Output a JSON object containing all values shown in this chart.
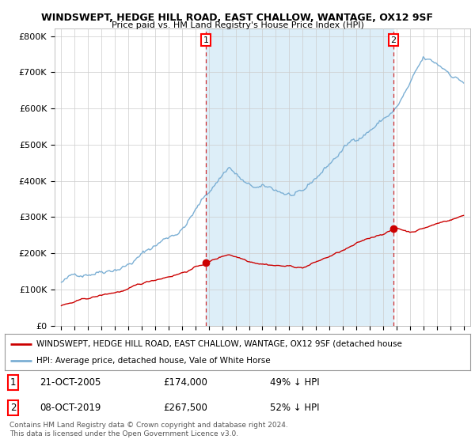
{
  "title": "WINDSWEPT, HEDGE HILL ROAD, EAST CHALLOW, WANTAGE, OX12 9SF",
  "subtitle": "Price paid vs. HM Land Registry's House Price Index (HPI)",
  "ylabel_ticks": [
    "£0",
    "£100K",
    "£200K",
    "£300K",
    "£400K",
    "£500K",
    "£600K",
    "£700K",
    "£800K"
  ],
  "ytick_values": [
    0,
    100000,
    200000,
    300000,
    400000,
    500000,
    600000,
    700000,
    800000
  ],
  "ylim": [
    0,
    820000
  ],
  "xlim_start": 1994.5,
  "xlim_end": 2025.5,
  "hpi_color": "#7bafd4",
  "hpi_fill_color": "#ddeef8",
  "price_color": "#cc0000",
  "marker1_date": 2005.8,
  "marker1_price": 174000,
  "marker2_date": 2019.78,
  "marker2_price": 267500,
  "legend_property": "WINDSWEPT, HEDGE HILL ROAD, EAST CHALLOW, WANTAGE, OX12 9SF (detached house",
  "legend_hpi": "HPI: Average price, detached house, Vale of White Horse",
  "footer": "Contains HM Land Registry data © Crown copyright and database right 2024.\nThis data is licensed under the Open Government Licence v3.0.",
  "background_color": "#ffffff",
  "grid_color": "#cccccc"
}
